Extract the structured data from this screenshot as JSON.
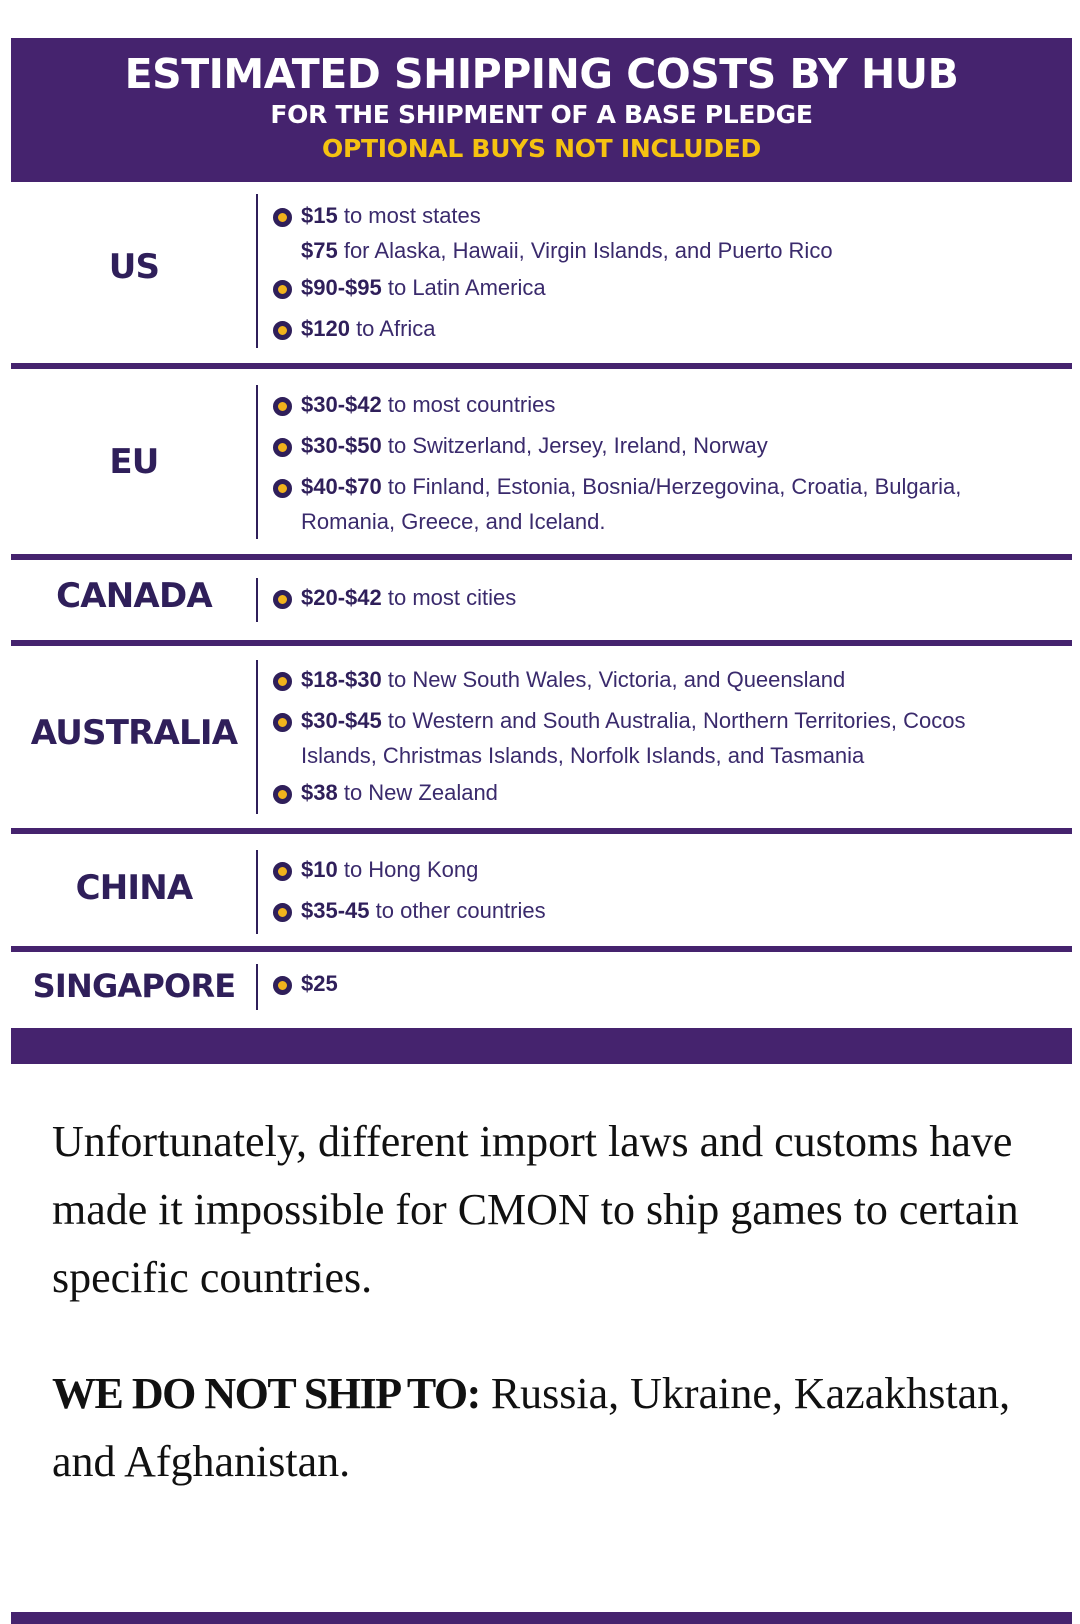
{
  "banner": {
    "title": "ESTIMATED SHIPPING COSTS BY HUB",
    "subtitle": "FOR THE SHIPMENT OF A BASE PLEDGE",
    "note": "OPTIONAL BUYS NOT INCLUDED"
  },
  "hubs": [
    {
      "name": "US",
      "items": [
        {
          "price": "$15",
          "text": " to most states",
          "bullet": true
        },
        {
          "price": "$75",
          "text": " for Alaska, Hawaii, Virgin Islands, and Puerto Rico",
          "bullet": false
        },
        {
          "price": "$90-$95",
          "text": " to Latin America",
          "bullet": true
        },
        {
          "price": "$120",
          "text": " to Africa",
          "bullet": true
        }
      ]
    },
    {
      "name": "EU",
      "items": [
        {
          "price": "$30-$42",
          "text": " to most countries",
          "bullet": true
        },
        {
          "price": "$30-$50",
          "text": " to Switzerland, Jersey, Ireland, Norway",
          "bullet": true
        },
        {
          "price": "$40-$70",
          "text": " to Finland, Estonia, Bosnia/Herzegovina, Croatia, Bulgaria, Romania, Greece, and Iceland.",
          "bullet": true
        }
      ]
    },
    {
      "name": "CANADA",
      "items": [
        {
          "price": "$20-$42",
          "text": " to most cities",
          "bullet": true
        }
      ]
    },
    {
      "name": "AUSTRALIA",
      "items": [
        {
          "price": "$18-$30",
          "text": " to New South Wales, Victoria, and Queensland",
          "bullet": true
        },
        {
          "price": "$30-$45",
          "text": " to Western and South Australia, Northern Territories, Cocos Islands, Christmas Islands, Norfolk Islands, and Tasmania",
          "bullet": true
        },
        {
          "price": "$38",
          "text": " to New Zealand",
          "bullet": true
        }
      ]
    },
    {
      "name": "CHINA",
      "items": [
        {
          "price": "$10",
          "text": " to Hong Kong",
          "bullet": true
        },
        {
          "price": "$35-45",
          "text": " to other countries",
          "bullet": true
        }
      ]
    },
    {
      "name": "SINGAPORE",
      "items": [
        {
          "price": "$25",
          "text": "",
          "bullet": true
        }
      ]
    }
  ],
  "paragraph1": "Unfortunately, different import laws and customs have made it impossible for CMON to ship games to certain specific countries.",
  "paragraph2": {
    "lead": "WE DO NOT SHIP TO:",
    "text": " Russia, Ukraine, Kazakhstan, and Afghanistan."
  },
  "colors": {
    "brand_purple": "#45236e",
    "accent_yellow": "#f5c211",
    "text_dark": "#2f1f5a"
  }
}
